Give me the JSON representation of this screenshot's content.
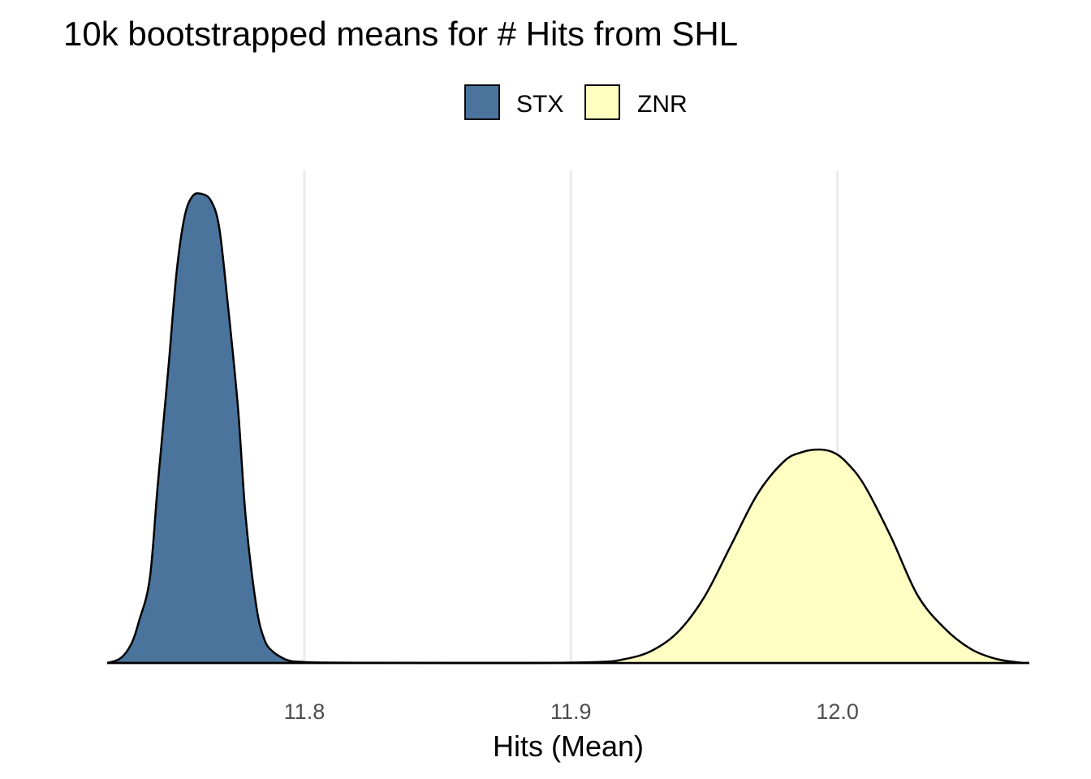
{
  "chart_data": {
    "type": "area",
    "title": "10k bootstrapped means for # Hits from SHL",
    "xlabel": "Hits (Mean)",
    "ylabel": "",
    "xlim": [
      11.726,
      12.072
    ],
    "xticks": [
      11.8,
      11.9,
      12.0
    ],
    "xtick_labels": [
      "11.8",
      "11.9",
      "12.0"
    ],
    "grid": "vertical-major-only",
    "legend_position": "top",
    "series": [
      {
        "name": "STX",
        "color": "#4a749c",
        "x": [
          11.726,
          11.731,
          11.735,
          11.738,
          11.742,
          11.745,
          11.749,
          11.752,
          11.755,
          11.758,
          11.7615,
          11.765,
          11.768,
          11.771,
          11.775,
          11.778,
          11.782,
          11.785,
          11.788,
          11.792,
          11.795,
          11.8,
          11.805,
          11.82,
          11.87,
          11.92,
          11.98,
          12.072
        ],
        "y": [
          0.0,
          0.01,
          0.04,
          0.09,
          0.18,
          0.38,
          0.63,
          0.83,
          0.95,
          0.995,
          1.0,
          0.985,
          0.93,
          0.78,
          0.55,
          0.31,
          0.12,
          0.05,
          0.025,
          0.01,
          0.004,
          0.002,
          0.001,
          0.0004,
          0.0,
          0.0,
          0.0,
          0.0
        ]
      },
      {
        "name": "ZNR",
        "color": "#ffffbf",
        "x": [
          11.726,
          11.8,
          11.88,
          11.91,
          11.92,
          11.93,
          11.94,
          11.95,
          11.96,
          11.97,
          11.98,
          11.987,
          11.993,
          11.998,
          12.003,
          12.01,
          12.02,
          12.03,
          12.04,
          12.05,
          12.06,
          12.07
        ],
        "y": [
          0.0,
          0.0,
          0.0,
          0.002,
          0.008,
          0.025,
          0.065,
          0.14,
          0.25,
          0.36,
          0.43,
          0.45,
          0.455,
          0.45,
          0.43,
          0.38,
          0.27,
          0.145,
          0.075,
          0.03,
          0.008,
          0.0
        ]
      }
    ]
  }
}
